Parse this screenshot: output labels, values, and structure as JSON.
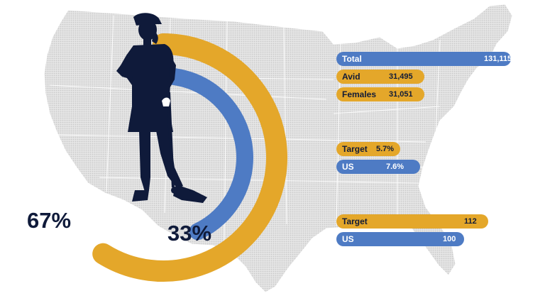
{
  "colors": {
    "gold": "#e4a72a",
    "blue": "#4e7bc4",
    "navy": "#0f1a3a",
    "map_fill": "#d9d9d9",
    "map_border": "#ffffff"
  },
  "icons": {
    "map": "usa-map-silhouette",
    "figure": "female-golfer-silhouette"
  },
  "chart_data": [
    {
      "type": "donut",
      "series": [
        {
          "value": 67,
          "color": "#e4a72a"
        },
        {
          "value": 33,
          "color": "#4e7bc4"
        }
      ],
      "labels": [
        "67%",
        "33%"
      ]
    },
    {
      "type": "bar",
      "orientation": "horizontal",
      "categories": [
        "Total",
        "Avid",
        "Females"
      ],
      "values": [
        131115,
        31495,
        31051
      ],
      "value_labels": [
        "131,115",
        "31,495",
        "31,051"
      ],
      "colors": [
        "#4e7bc4",
        "#e4a72a",
        "#e4a72a"
      ]
    },
    {
      "type": "bar",
      "orientation": "horizontal",
      "categories": [
        "Target",
        "US"
      ],
      "values": [
        5.7,
        7.6
      ],
      "value_labels": [
        "5.7%",
        "7.6%"
      ],
      "colors": [
        "#e4a72a",
        "#4e7bc4"
      ]
    },
    {
      "type": "bar",
      "orientation": "horizontal",
      "categories": [
        "Target",
        "US"
      ],
      "values": [
        112,
        100
      ],
      "value_labels": [
        "112",
        "100"
      ],
      "colors": [
        "#e4a72a",
        "#4e7bc4"
      ]
    }
  ]
}
